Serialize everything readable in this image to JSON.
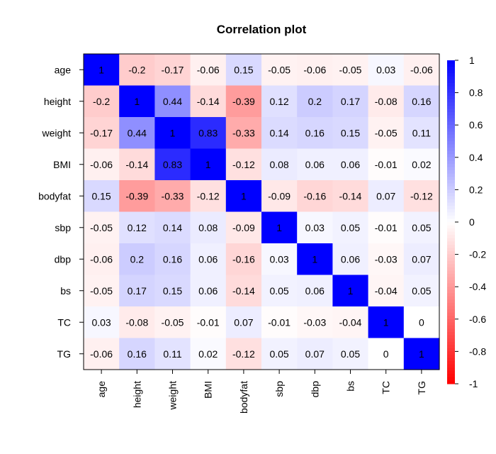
{
  "chart_data": {
    "type": "heatmap",
    "title": "Correlation plot",
    "variables": [
      "age",
      "height",
      "weight",
      "BMI",
      "bodyfat",
      "sbp",
      "dbp",
      "bs",
      "TC",
      "TG"
    ],
    "matrix": [
      [
        1,
        -0.2,
        -0.17,
        -0.06,
        0.15,
        -0.05,
        -0.06,
        -0.05,
        0.03,
        -0.06
      ],
      [
        -0.2,
        1,
        0.44,
        -0.14,
        -0.39,
        0.12,
        0.2,
        0.17,
        -0.08,
        0.16
      ],
      [
        -0.17,
        0.44,
        1,
        0.83,
        -0.33,
        0.14,
        0.16,
        0.15,
        -0.05,
        0.11
      ],
      [
        -0.06,
        -0.14,
        0.83,
        1,
        -0.12,
        0.08,
        0.06,
        0.06,
        -0.01,
        0.02
      ],
      [
        0.15,
        -0.39,
        -0.33,
        -0.12,
        1,
        -0.09,
        -0.16,
        -0.14,
        0.07,
        -0.12
      ],
      [
        -0.05,
        0.12,
        0.14,
        0.08,
        -0.09,
        1,
        0.03,
        0.05,
        -0.01,
        0.05
      ],
      [
        -0.06,
        0.2,
        0.16,
        0.06,
        -0.16,
        0.03,
        1,
        0.06,
        -0.03,
        0.07
      ],
      [
        -0.05,
        0.17,
        0.15,
        0.06,
        -0.14,
        0.05,
        0.06,
        1,
        -0.04,
        0.05
      ],
      [
        0.03,
        -0.08,
        -0.05,
        -0.01,
        0.07,
        -0.01,
        -0.03,
        -0.04,
        1,
        0
      ],
      [
        -0.06,
        0.16,
        0.11,
        0.02,
        -0.12,
        0.05,
        0.07,
        0.05,
        0,
        1
      ]
    ],
    "colorbar": {
      "range": [
        -1,
        1
      ],
      "ticks": [
        1,
        0.8,
        0.6,
        0.4,
        0.2,
        0,
        -0.2,
        -0.4,
        -0.6,
        -0.8,
        -1
      ],
      "high_color": "#0000FF",
      "mid_color": "#FFFFFF",
      "low_color": "#FF0000"
    }
  }
}
